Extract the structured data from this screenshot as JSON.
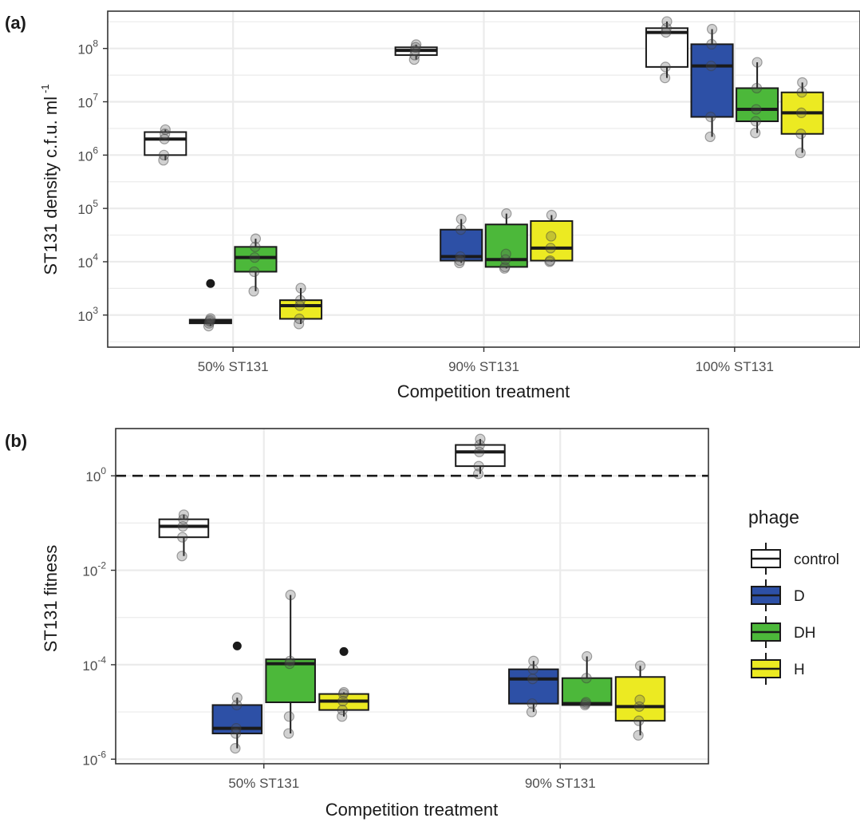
{
  "figure": {
    "panel_labels": [
      "(a)",
      "(b)"
    ]
  },
  "colors": {
    "control": "#ffffff",
    "D": "#2d50a6",
    "DH": "#4cb83a",
    "H": "#ecea22",
    "grid": "#ebebeb",
    "outline": "#1a1a1a"
  },
  "legend": {
    "title": "phage",
    "items": [
      {
        "key": "control",
        "label": "control"
      },
      {
        "key": "D",
        "label": "D"
      },
      {
        "key": "DH",
        "label": "DH"
      },
      {
        "key": "H",
        "label": "H"
      }
    ]
  },
  "chart_data": [
    {
      "panel": "(a)",
      "type": "box",
      "xlabel": "Competition treatment",
      "ylabel": "ST131 density c.f.u. ml",
      "ylabel_superscript": "-1",
      "y_scale": "log10",
      "ylim": [
        250,
        500000000
      ],
      "y_ticks": [
        {
          "base": "10",
          "exp": "3",
          "value": 1000
        },
        {
          "base": "10",
          "exp": "4",
          "value": 10000
        },
        {
          "base": "10",
          "exp": "5",
          "value": 100000
        },
        {
          "base": "10",
          "exp": "6",
          "value": 1000000
        },
        {
          "base": "10",
          "exp": "7",
          "value": 10000000
        },
        {
          "base": "10",
          "exp": "8",
          "value": 100000000
        }
      ],
      "categories": [
        "50% ST131",
        "90% ST131",
        "100% ST131"
      ],
      "series": [
        {
          "name": "control",
          "boxes": [
            {
              "category": "50% ST131",
              "q1": 1000000,
              "median": 2000000,
              "q3": 2700000,
              "whisker_low": 800000,
              "whisker_high": 3000000,
              "outliers": [],
              "points": [
                800000,
                1000000,
                2000000,
                2500000,
                3000000
              ]
            },
            {
              "category": "90% ST131",
              "q1": 75000000,
              "median": 92000000,
              "q3": 105000000,
              "whisker_low": 62000000,
              "whisker_high": 118000000,
              "outliers": [],
              "points": [
                62000000,
                75000000,
                92000000,
                105000000,
                118000000
              ]
            },
            {
              "category": "100% ST131",
              "q1": 45000000,
              "median": 200000000,
              "q3": 240000000,
              "whisker_low": 28000000,
              "whisker_high": 320000000,
              "outliers": [],
              "points": [
                28000000,
                45000000,
                200000000,
                240000000,
                320000000
              ]
            }
          ]
        },
        {
          "name": "D",
          "boxes": [
            {
              "category": "50% ST131",
              "q1": 700,
              "median": 760,
              "q3": 820,
              "whisker_low": 620,
              "whisker_high": 860,
              "outliers": [
                3900
              ],
              "points": [
                620,
                700,
                760,
                800,
                860
              ]
            },
            {
              "category": "90% ST131",
              "q1": 10500,
              "median": 12500,
              "q3": 40000,
              "whisker_low": 9500,
              "whisker_high": 63000,
              "outliers": [],
              "points": [
                9500,
                10500,
                12500,
                40000,
                63000
              ]
            },
            {
              "category": "100% ST131",
              "q1": 5200000,
              "median": 47000000,
              "q3": 120000000,
              "whisker_low": 2200000,
              "whisker_high": 230000000,
              "outliers": [],
              "points": [
                2200000,
                5200000,
                47000000,
                120000000,
                230000000
              ]
            }
          ]
        },
        {
          "name": "DH",
          "boxes": [
            {
              "category": "50% ST131",
              "q1": 6500,
              "median": 12000,
              "q3": 19000,
              "whisker_low": 2800,
              "whisker_high": 27000,
              "outliers": [],
              "points": [
                2800,
                6500,
                12000,
                19000,
                27000
              ]
            },
            {
              "category": "90% ST131",
              "q1": 8000,
              "median": 11000,
              "q3": 50000,
              "whisker_low": 7500,
              "whisker_high": 80000,
              "outliers": [],
              "points": [
                7500,
                8000,
                11000,
                14000,
                80000
              ]
            },
            {
              "category": "100% ST131",
              "q1": 4300000,
              "median": 7200000,
              "q3": 18000000,
              "whisker_low": 2600000,
              "whisker_high": 55000000,
              "outliers": [],
              "points": [
                2600000,
                4300000,
                7200000,
                18000000,
                55000000
              ]
            }
          ]
        },
        {
          "name": "H",
          "boxes": [
            {
              "category": "50% ST131",
              "q1": 850,
              "median": 1500,
              "q3": 1900,
              "whisker_low": 680,
              "whisker_high": 3200,
              "outliers": [],
              "points": [
                680,
                850,
                1500,
                1900,
                3200
              ]
            },
            {
              "category": "90% ST131",
              "q1": 10500,
              "median": 18000,
              "q3": 58000,
              "whisker_low": 10000,
              "whisker_high": 75000,
              "outliers": [],
              "points": [
                10000,
                10500,
                18000,
                30000,
                75000
              ]
            },
            {
              "category": "100% ST131",
              "q1": 2500000,
              "median": 6200000,
              "q3": 15000000,
              "whisker_low": 1100000,
              "whisker_high": 23000000,
              "outliers": [],
              "points": [
                1100000,
                2500000,
                6200000,
                15000000,
                23000000
              ]
            }
          ]
        }
      ]
    },
    {
      "panel": "(b)",
      "type": "box",
      "xlabel": "Competition treatment",
      "ylabel": "ST131 fitness",
      "y_scale": "log10",
      "ylim": [
        8e-07,
        10
      ],
      "reference_line": {
        "value": 1,
        "style": "dashed"
      },
      "y_ticks": [
        {
          "base": "10",
          "exp": "-6",
          "value": 1e-06
        },
        {
          "base": "10",
          "exp": "-4",
          "value": 0.0001
        },
        {
          "base": "10",
          "exp": "-2",
          "value": 0.01
        },
        {
          "base": "10",
          "exp": "0",
          "value": 1
        }
      ],
      "categories": [
        "50% ST131",
        "90% ST131"
      ],
      "series": [
        {
          "name": "control",
          "boxes": [
            {
              "category": "50% ST131",
              "q1": 0.05,
              "median": 0.085,
              "q3": 0.12,
              "whisker_low": 0.02,
              "whisker_high": 0.15,
              "outliers": [],
              "points": [
                0.02,
                0.05,
                0.085,
                0.12,
                0.15
              ]
            },
            {
              "category": "90% ST131",
              "q1": 1.6,
              "median": 3.2,
              "q3": 4.5,
              "whisker_low": 1.1,
              "whisker_high": 6,
              "outliers": [],
              "points": [
                1.1,
                1.6,
                3.2,
                4.5,
                6
              ]
            }
          ]
        },
        {
          "name": "D",
          "boxes": [
            {
              "category": "50% ST131",
              "q1": 3.5e-06,
              "median": 4.5e-06,
              "q3": 1.4e-05,
              "whisker_low": 1.7e-06,
              "whisker_high": 2e-05,
              "outliers": [
                0.00025
              ],
              "points": [
                1.7e-06,
                3.5e-06,
                4.5e-06,
                1.4e-05,
                2e-05
              ]
            },
            {
              "category": "90% ST131",
              "q1": 1.5e-05,
              "median": 5e-05,
              "q3": 8e-05,
              "whisker_low": 1e-05,
              "whisker_high": 0.00012,
              "outliers": [],
              "points": [
                1e-05,
                1.5e-05,
                5e-05,
                8e-05,
                0.00012
              ]
            }
          ]
        },
        {
          "name": "DH",
          "boxes": [
            {
              "category": "50% ST131",
              "q1": 1.6e-05,
              "median": 0.000105,
              "q3": 0.00013,
              "whisker_low": 3.5e-06,
              "whisker_high": 0.003,
              "outliers": [],
              "points": [
                3.5e-06,
                8e-06,
                0.000105,
                0.00012,
                0.003
              ]
            },
            {
              "category": "90% ST131",
              "q1": 1.4e-05,
              "median": 1.5e-05,
              "q3": 5.2e-05,
              "whisker_low": 1.4e-05,
              "whisker_high": 0.00015,
              "outliers": [],
              "points": [
                1.4e-05,
                1.5e-05,
                1.6e-05,
                5.2e-05,
                0.00015
              ]
            }
          ]
        },
        {
          "name": "H",
          "boxes": [
            {
              "category": "50% ST131",
              "q1": 1.1e-05,
              "median": 1.7e-05,
              "q3": 2.4e-05,
              "whisker_low": 8e-06,
              "whisker_high": 2.6e-05,
              "outliers": [
                0.00019
              ],
              "points": [
                8e-06,
                1.1e-05,
                1.7e-05,
                2.4e-05,
                2.6e-05
              ]
            },
            {
              "category": "90% ST131",
              "q1": 6.5e-06,
              "median": 1.3e-05,
              "q3": 5.5e-05,
              "whisker_low": 3.2e-06,
              "whisker_high": 9.5e-05,
              "outliers": [],
              "points": [
                3.2e-06,
                6.5e-06,
                1.3e-05,
                1.8e-05,
                9.5e-05
              ]
            }
          ]
        }
      ]
    }
  ]
}
